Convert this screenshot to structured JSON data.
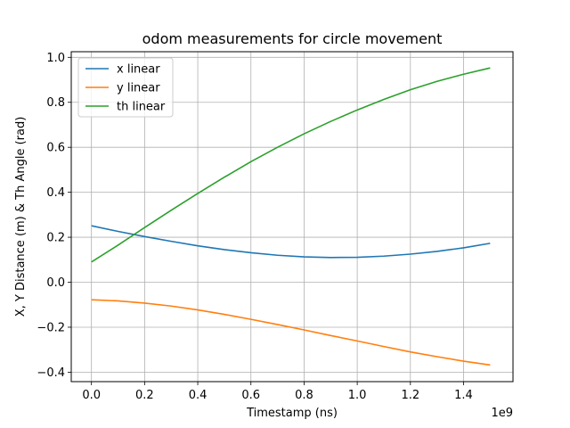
{
  "chart_data": {
    "type": "line",
    "title": "odom measurements for circle movement",
    "xlabel": "Timestamp (ns)",
    "ylabel": "X, Y Distance (m) & Th Angle (rad)",
    "x_offset_label": "1e9",
    "xlim": [
      -0.076,
      1.586
    ],
    "ylim": [
      -0.442,
      1.025
    ],
    "x_ticks": [
      0.0,
      0.2,
      0.4,
      0.6,
      0.8,
      1.0,
      1.2,
      1.4
    ],
    "x_tick_labels": [
      "0.0",
      "0.2",
      "0.4",
      "0.6",
      "0.8",
      "1.0",
      "1.2",
      "1.4"
    ],
    "y_ticks": [
      -0.4,
      -0.2,
      0.0,
      0.2,
      0.4,
      0.6,
      0.8,
      1.0
    ],
    "y_tick_labels": [
      "−0.4",
      "−0.2",
      "0.0",
      "0.2",
      "0.4",
      "0.6",
      "0.8",
      "1.0"
    ],
    "grid": true,
    "legend_position": "top-left",
    "x": [
      0.0,
      0.1,
      0.2,
      0.3,
      0.4,
      0.5,
      0.6,
      0.7,
      0.8,
      0.9,
      1.0,
      1.1,
      1.2,
      1.3,
      1.4,
      1.5
    ],
    "series": [
      {
        "name": "x linear",
        "color": "#1f77b4",
        "values": [
          0.251,
          0.226,
          0.203,
          0.182,
          0.162,
          0.145,
          0.131,
          0.12,
          0.113,
          0.11,
          0.111,
          0.116,
          0.125,
          0.137,
          0.153,
          0.173
        ]
      },
      {
        "name": "y linear",
        "color": "#ff7f0e",
        "values": [
          -0.078,
          -0.083,
          -0.093,
          -0.106,
          -0.123,
          -0.143,
          -0.165,
          -0.188,
          -0.212,
          -0.237,
          -0.261,
          -0.286,
          -0.31,
          -0.331,
          -0.351,
          -0.368
        ]
      },
      {
        "name": "th linear",
        "color": "#2ca02c",
        "values": [
          0.09,
          0.165,
          0.243,
          0.32,
          0.395,
          0.467,
          0.536,
          0.6,
          0.66,
          0.715,
          0.766,
          0.813,
          0.856,
          0.893,
          0.925,
          0.953
        ]
      }
    ]
  }
}
